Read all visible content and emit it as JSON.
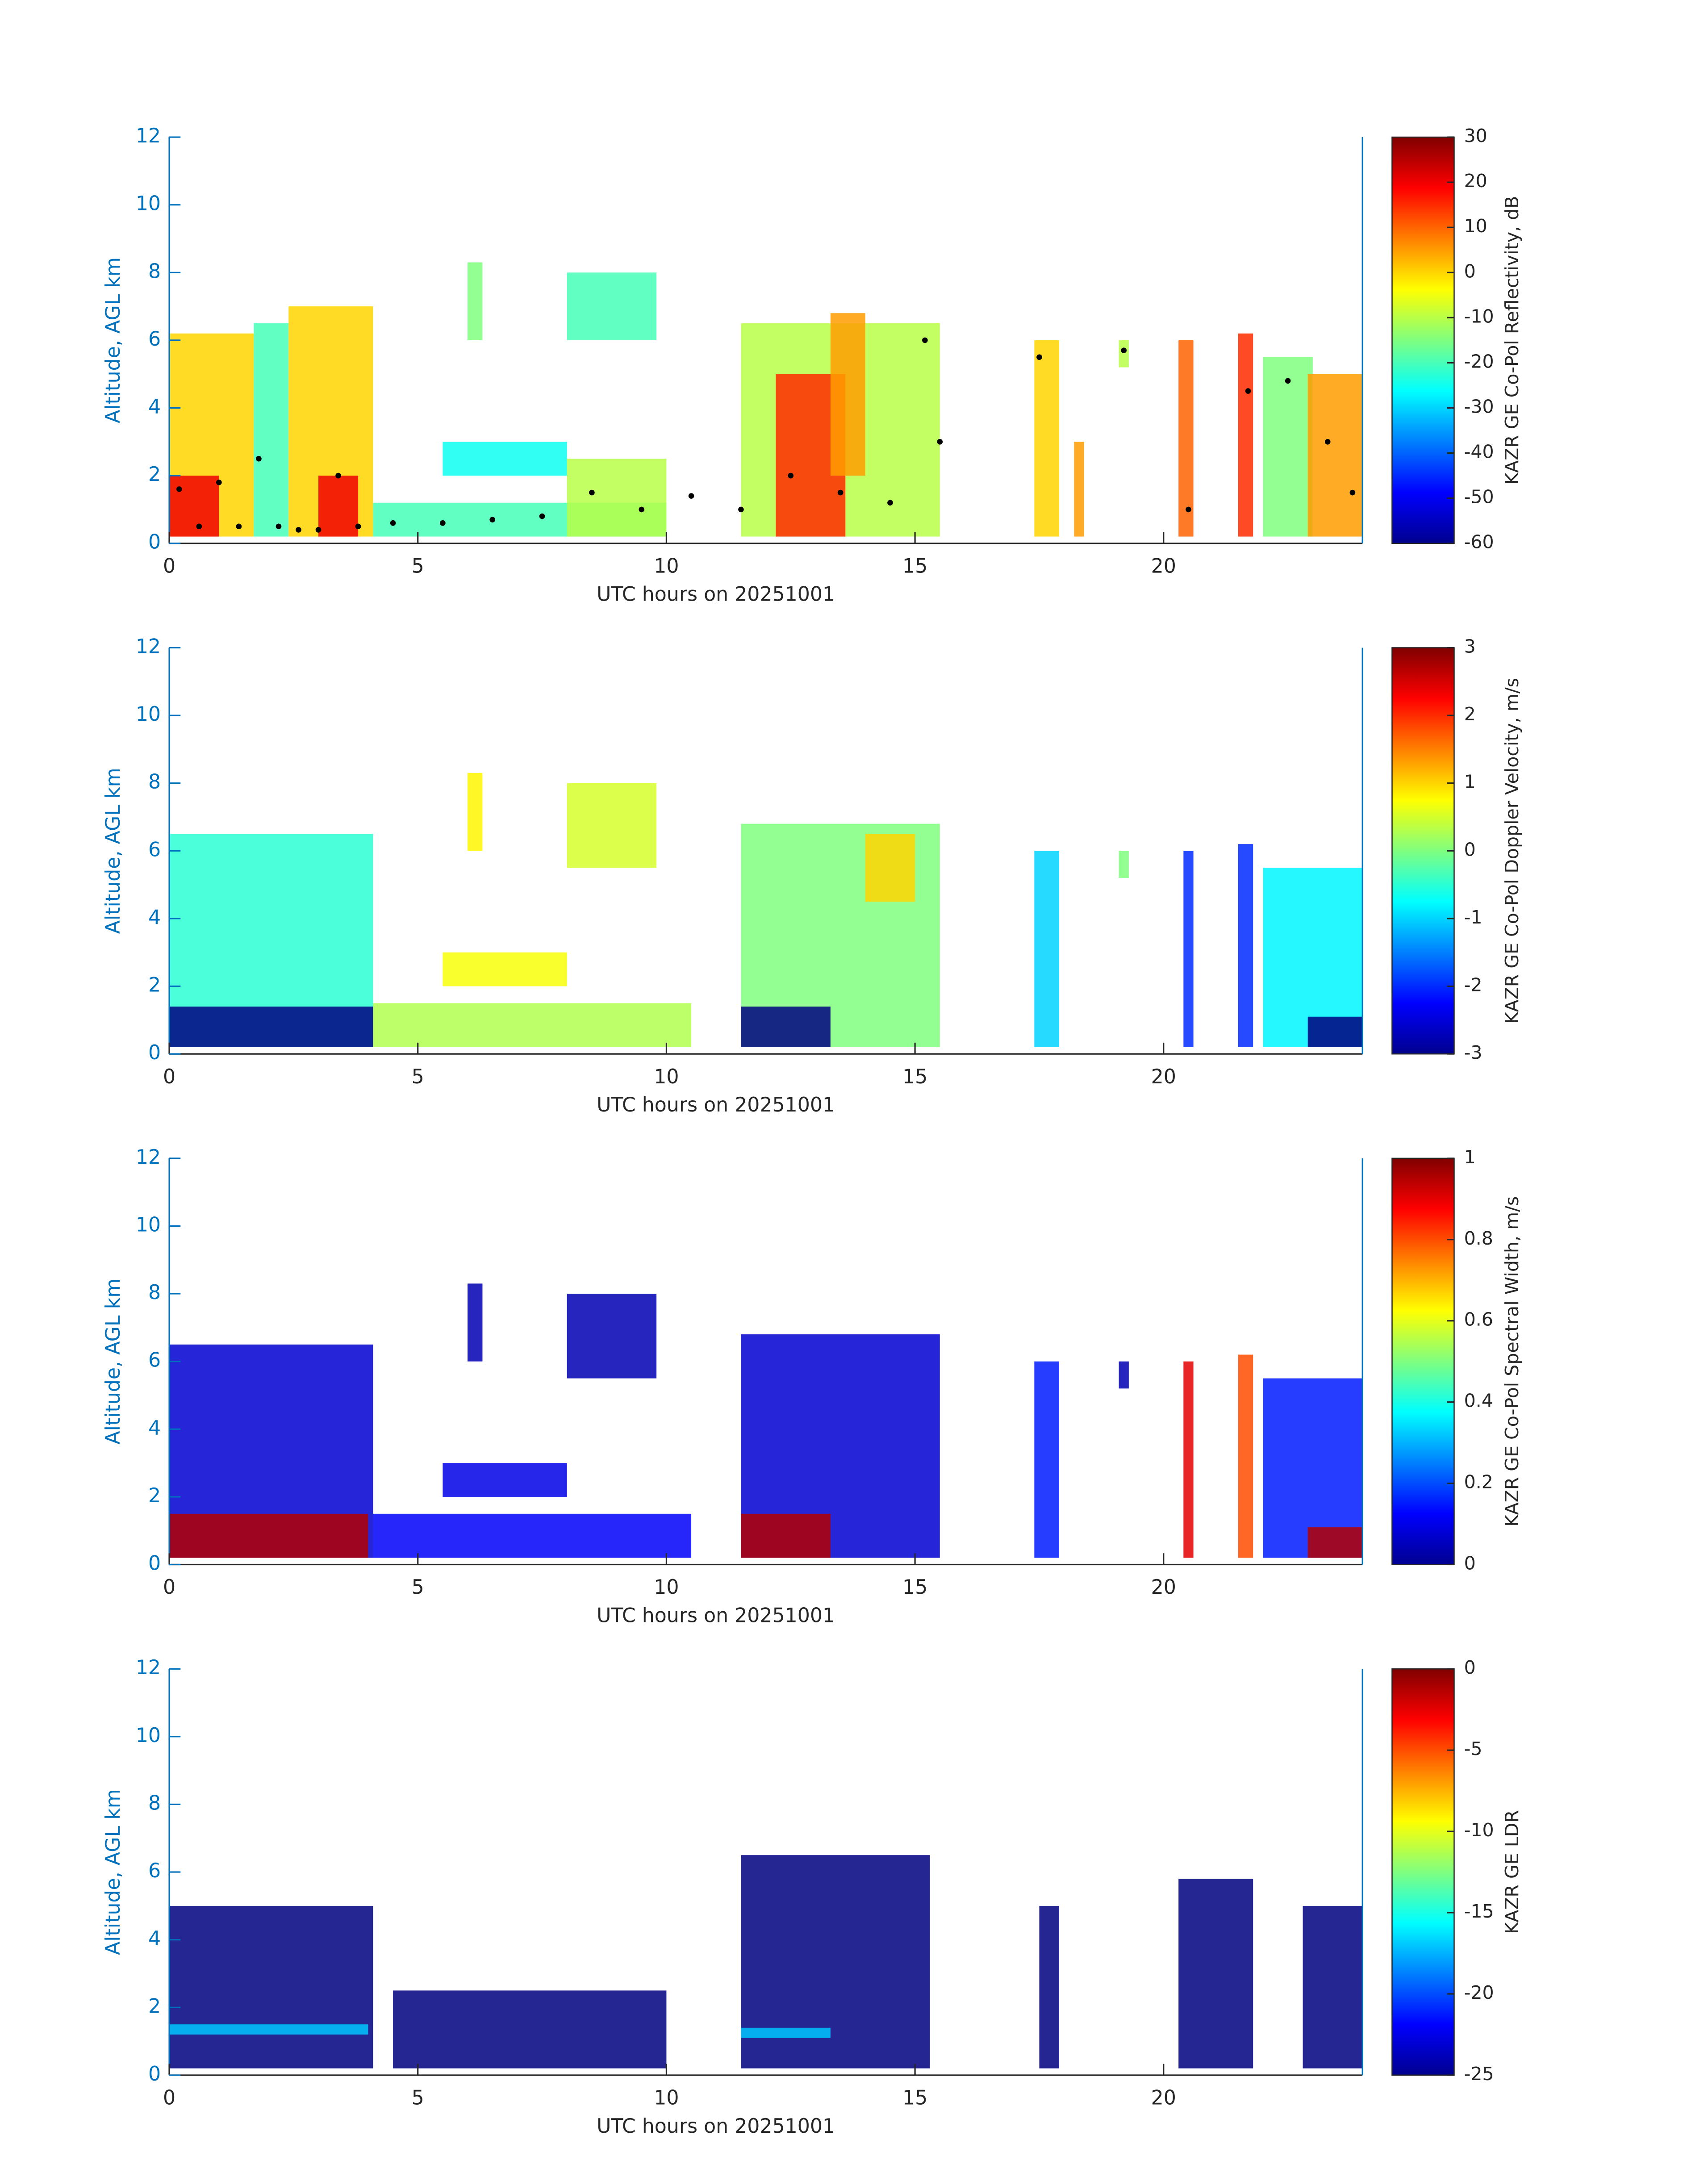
{
  "chart_data": [
    {
      "type": "heatmap",
      "xlabel": "UTC hours on 20251001",
      "ylabel": "Altitude, AGL km",
      "colorbar_label": "KAZR GE Co-Pol Reflectivity, dB",
      "xlim": [
        0,
        24
      ],
      "xticks": [
        0,
        5,
        10,
        15,
        20
      ],
      "ylim": [
        0,
        12
      ],
      "yticks": [
        0,
        2,
        4,
        6,
        8,
        10,
        12
      ],
      "clim": [
        -60,
        30
      ],
      "cticks": [
        30,
        20,
        10,
        0,
        -10,
        -20,
        -30,
        -40,
        -50,
        -60
      ],
      "cells": [
        {
          "x": [
            0,
            1.7
          ],
          "y": [
            0.2,
            6.2
          ],
          "value": 0
        },
        {
          "x": [
            0,
            1
          ],
          "y": [
            0.2,
            2
          ],
          "value": 20
        },
        {
          "x": [
            1.7,
            2.4
          ],
          "y": [
            0.2,
            6.5
          ],
          "value": -20
        },
        {
          "x": [
            2.4,
            4.1
          ],
          "y": [
            0.2,
            7
          ],
          "value": 0
        },
        {
          "x": [
            3,
            3.8
          ],
          "y": [
            0.2,
            2
          ],
          "value": 20
        },
        {
          "x": [
            4.1,
            10
          ],
          "y": [
            0.2,
            1.2
          ],
          "value": -20
        },
        {
          "x": [
            5.5,
            8
          ],
          "y": [
            2,
            3
          ],
          "value": -25
        },
        {
          "x": [
            6,
            6.3
          ],
          "y": [
            6,
            8.3
          ],
          "value": -15
        },
        {
          "x": [
            8,
            9.8
          ],
          "y": [
            6,
            8
          ],
          "value": -20
        },
        {
          "x": [
            8,
            10
          ],
          "y": [
            0.2,
            2.5
          ],
          "value": -10
        },
        {
          "x": [
            11.5,
            15.5
          ],
          "y": [
            0.2,
            6.5
          ],
          "value": -10
        },
        {
          "x": [
            12.2,
            13.6
          ],
          "y": [
            0.2,
            5
          ],
          "value": 15
        },
        {
          "x": [
            13.3,
            14
          ],
          "y": [
            2,
            6.8
          ],
          "value": 5
        },
        {
          "x": [
            17.4,
            17.9
          ],
          "y": [
            0.2,
            6
          ],
          "value": 0
        },
        {
          "x": [
            18.2,
            18.4
          ],
          "y": [
            0.2,
            3
          ],
          "value": 5
        },
        {
          "x": [
            19.1,
            19.3
          ],
          "y": [
            5.2,
            6
          ],
          "value": -10
        },
        {
          "x": [
            20.3,
            20.6
          ],
          "y": [
            0.2,
            6
          ],
          "value": 10
        },
        {
          "x": [
            21.5,
            21.8
          ],
          "y": [
            0.2,
            6.2
          ],
          "value": 15
        },
        {
          "x": [
            22,
            23
          ],
          "y": [
            0.2,
            5.5
          ],
          "value": -15
        },
        {
          "x": [
            22.9,
            24
          ],
          "y": [
            0.2,
            5
          ],
          "value": 5
        }
      ],
      "overlay": {
        "color": "#000000",
        "x": [
          0.2,
          0.6,
          1,
          1.4,
          1.8,
          2.2,
          2.6,
          3,
          3.4,
          3.8,
          4.5,
          5.5,
          6.5,
          7.5,
          8.5,
          9.5,
          10.5,
          11.5,
          12.5,
          13.5,
          14.5,
          15.2,
          15.5,
          17.5,
          19.2,
          20.5,
          21.7,
          22.5,
          23.3,
          23.8
        ],
        "y": [
          1.6,
          0.5,
          1.8,
          0.5,
          2.5,
          0.5,
          0.4,
          0.4,
          2,
          0.5,
          0.6,
          0.6,
          0.7,
          0.8,
          1.5,
          1,
          1.4,
          1,
          2,
          1.5,
          1.2,
          6,
          3,
          5.5,
          5.7,
          1,
          4.5,
          4.8,
          3,
          1.5
        ]
      }
    },
    {
      "type": "heatmap",
      "xlabel": "UTC hours on 20251001",
      "ylabel": "Altitude, AGL km",
      "colorbar_label": "KAZR GE Co-Pol Doppler Velocity, m/s",
      "xlim": [
        0,
        24
      ],
      "xticks": [
        0,
        5,
        10,
        15,
        20
      ],
      "ylim": [
        0,
        12
      ],
      "yticks": [
        0,
        2,
        4,
        6,
        8,
        10,
        12
      ],
      "clim": [
        -3,
        3
      ],
      "cticks": [
        3,
        2,
        1,
        0,
        -1,
        -2,
        -3
      ],
      "cells": [
        {
          "x": [
            0,
            4.1
          ],
          "y": [
            0.2,
            6.5
          ],
          "value": -0.5
        },
        {
          "x": [
            0,
            4.1
          ],
          "y": [
            0.2,
            1.4
          ],
          "value": -3
        },
        {
          "x": [
            4.1,
            10.5
          ],
          "y": [
            0.2,
            1.5
          ],
          "value": 0.3
        },
        {
          "x": [
            5.5,
            8
          ],
          "y": [
            2,
            3
          ],
          "value": 0.7
        },
        {
          "x": [
            6,
            6.3
          ],
          "y": [
            6,
            8.3
          ],
          "value": 0.8
        },
        {
          "x": [
            8,
            9.8
          ],
          "y": [
            5.5,
            8
          ],
          "value": 0.5
        },
        {
          "x": [
            11.5,
            15.5
          ],
          "y": [
            0.2,
            6.8
          ],
          "value": 0
        },
        {
          "x": [
            11.5,
            13.3
          ],
          "y": [
            0.2,
            1.4
          ],
          "value": -3
        },
        {
          "x": [
            14,
            15
          ],
          "y": [
            4.5,
            6.5
          ],
          "value": 1
        },
        {
          "x": [
            17.4,
            17.9
          ],
          "y": [
            0.2,
            6
          ],
          "value": -1
        },
        {
          "x": [
            19.1,
            19.3
          ],
          "y": [
            5.2,
            6
          ],
          "value": 0
        },
        {
          "x": [
            20.4,
            20.6
          ],
          "y": [
            0.2,
            6
          ],
          "value": -2
        },
        {
          "x": [
            21.5,
            21.8
          ],
          "y": [
            0.2,
            6.2
          ],
          "value": -2
        },
        {
          "x": [
            22,
            24
          ],
          "y": [
            0.2,
            5.5
          ],
          "value": -0.8
        },
        {
          "x": [
            22.9,
            24
          ],
          "y": [
            0.2,
            1.1
          ],
          "value": -3
        }
      ]
    },
    {
      "type": "heatmap",
      "xlabel": "UTC hours on 20251001",
      "ylabel": "Altitude, AGL km",
      "colorbar_label": "KAZR GE Co-Pol Spectral Width, m/s",
      "xlim": [
        0,
        24
      ],
      "xticks": [
        0,
        5,
        10,
        15,
        20
      ],
      "ylim": [
        0,
        12
      ],
      "yticks": [
        0,
        2,
        4,
        6,
        8,
        10,
        12
      ],
      "clim": [
        0,
        1
      ],
      "cticks": [
        1,
        0.8,
        0.6,
        0.4,
        0.2,
        0
      ],
      "cells": [
        {
          "x": [
            0,
            4.1
          ],
          "y": [
            0.2,
            6.5
          ],
          "value": 0.08
        },
        {
          "x": [
            0,
            4
          ],
          "y": [
            0.2,
            1.5
          ],
          "value": 0.95
        },
        {
          "x": [
            4.1,
            10.5
          ],
          "y": [
            0.2,
            1.5
          ],
          "value": 0.12
        },
        {
          "x": [
            5.5,
            8
          ],
          "y": [
            2,
            3
          ],
          "value": 0.1
        },
        {
          "x": [
            6,
            6.3
          ],
          "y": [
            6,
            8.3
          ],
          "value": 0.05
        },
        {
          "x": [
            8,
            9.8
          ],
          "y": [
            5.5,
            8
          ],
          "value": 0.05
        },
        {
          "x": [
            11.5,
            15.5
          ],
          "y": [
            0.2,
            6.8
          ],
          "value": 0.08
        },
        {
          "x": [
            11.5,
            13.3
          ],
          "y": [
            0.2,
            1.5
          ],
          "value": 0.95
        },
        {
          "x": [
            17.4,
            17.9
          ],
          "y": [
            0.2,
            6
          ],
          "value": 0.15
        },
        {
          "x": [
            19.1,
            19.3
          ],
          "y": [
            5.2,
            6
          ],
          "value": 0.05
        },
        {
          "x": [
            20.4,
            20.6
          ],
          "y": [
            0.2,
            6
          ],
          "value": 0.9
        },
        {
          "x": [
            21.5,
            21.8
          ],
          "y": [
            0.2,
            6.2
          ],
          "value": 0.8
        },
        {
          "x": [
            22,
            24
          ],
          "y": [
            0.2,
            5.5
          ],
          "value": 0.15
        },
        {
          "x": [
            22.9,
            24
          ],
          "y": [
            0.2,
            1.1
          ],
          "value": 0.95
        }
      ]
    },
    {
      "type": "heatmap",
      "xlabel": "UTC hours on 20251001",
      "ylabel": "Altitude, AGL km",
      "colorbar_label": "KAZR GE LDR",
      "xlim": [
        0,
        24
      ],
      "xticks": [
        0,
        5,
        10,
        15,
        20
      ],
      "ylim": [
        0,
        12
      ],
      "yticks": [
        0,
        2,
        4,
        6,
        8,
        10,
        12
      ],
      "clim": [
        -25,
        0
      ],
      "cticks": [
        0,
        -5,
        -10,
        -15,
        -20,
        -25
      ],
      "cells": [
        {
          "x": [
            0,
            4.1
          ],
          "y": [
            0.2,
            5
          ],
          "value": -25
        },
        {
          "x": [
            4.5,
            10
          ],
          "y": [
            0.2,
            2.5
          ],
          "value": -25
        },
        {
          "x": [
            11.5,
            15.3
          ],
          "y": [
            0.2,
            6.5
          ],
          "value": -25
        },
        {
          "x": [
            17.5,
            17.9
          ],
          "y": [
            0.2,
            5
          ],
          "value": -25
        },
        {
          "x": [
            20.3,
            21.8
          ],
          "y": [
            0.2,
            5.8
          ],
          "value": -25
        },
        {
          "x": [
            22.8,
            24
          ],
          "y": [
            0.2,
            5
          ],
          "value": -25
        },
        {
          "x": [
            0,
            4
          ],
          "y": [
            1.2,
            1.5
          ],
          "value": -17
        },
        {
          "x": [
            11.5,
            13.3
          ],
          "y": [
            1.1,
            1.4
          ],
          "value": -17
        }
      ]
    }
  ]
}
